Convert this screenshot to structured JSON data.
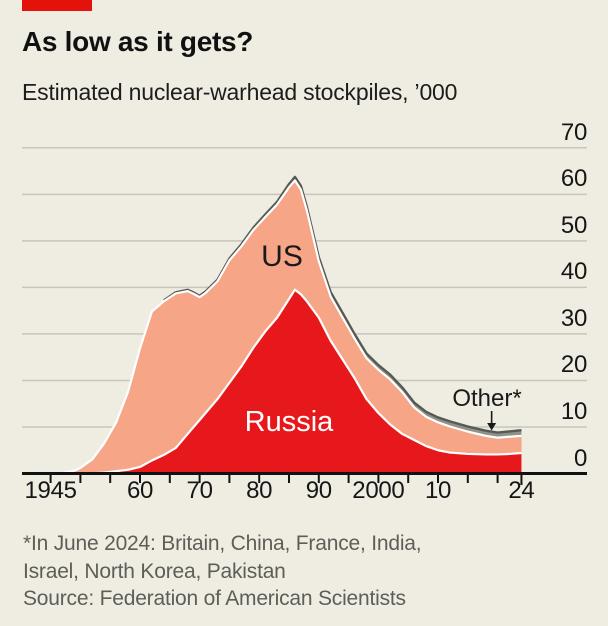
{
  "header": {
    "title": "As low as it gets?",
    "subtitle": "Estimated nuclear-warhead stockpiles, ’000"
  },
  "footer": {
    "note_line1": "*In June 2024: Britain, China, France, India,",
    "note_line2": "Israel, North Korea, Pakistan",
    "source": "Source: Federation of American Scientists"
  },
  "colors": {
    "background": "#efece2",
    "brand_red": "#e3120b",
    "russia_red": "#e6181b",
    "us_salmon": "#f7a587",
    "other_gray": "#8f928a",
    "other_outline": "#555a55",
    "white_separator": "#ffffff",
    "gridline": "#c8c6bc",
    "axis": "#121212",
    "text_dark": "#161616",
    "text_muted": "#5e5e59"
  },
  "chart_data": {
    "type": "area",
    "stacked": true,
    "title": "As low as it gets?",
    "subtitle": "Estimated nuclear-warhead stockpiles, ’000",
    "units": "thousands of warheads",
    "xlim": [
      1945,
      2024
    ],
    "ylim": [
      0,
      70
    ],
    "grid": "horizontal",
    "yticks": [
      0,
      10,
      20,
      30,
      40,
      50,
      60,
      70
    ],
    "y_axis_side": "right",
    "xticks": [
      {
        "year": 1945,
        "label": "1945"
      },
      {
        "year": 1960,
        "label": "60"
      },
      {
        "year": 1970,
        "label": "70"
      },
      {
        "year": 1980,
        "label": "80"
      },
      {
        "year": 1990,
        "label": "90"
      },
      {
        "year": 2000,
        "label": "2000"
      },
      {
        "year": 2010,
        "label": "10"
      },
      {
        "year": 2024,
        "label": "24"
      }
    ],
    "minor_tick_step": 5,
    "years": [
      1945,
      1947,
      1949,
      1950,
      1952,
      1954,
      1956,
      1958,
      1960,
      1962,
      1964,
      1966,
      1968,
      1969,
      1970,
      1971,
      1973,
      1975,
      1977,
      1979,
      1981,
      1983,
      1985,
      1986,
      1987,
      1988,
      1990,
      1992,
      1994,
      1996,
      1998,
      2000,
      2002,
      2004,
      2006,
      2008,
      2010,
      2012,
      2015,
      2018,
      2020,
      2022,
      2024
    ],
    "series": [
      {
        "name": "Russia",
        "color": "#e6181b",
        "values": [
          0,
          0,
          0,
          0,
          0.05,
          0.2,
          0.5,
          0.8,
          1.4,
          2.8,
          4,
          5.5,
          8.5,
          10,
          11.5,
          13,
          16,
          19.5,
          23,
          27,
          30.5,
          33.5,
          37.5,
          39.5,
          38.5,
          37,
          33.5,
          28.5,
          24.5,
          20.5,
          16,
          13,
          10.5,
          8.5,
          7.2,
          5.9,
          5,
          4.5,
          4.2,
          4.1,
          4.1,
          4.2,
          4.4
        ]
      },
      {
        "name": "US",
        "color": "#f7a587",
        "values": [
          0.02,
          0.1,
          0.6,
          1.2,
          3,
          6.3,
          10.5,
          16.8,
          25.5,
          32,
          33,
          33.2,
          30.7,
          28.6,
          26.4,
          25.8,
          25.3,
          26.3,
          25.8,
          25.3,
          24.6,
          24.3,
          24,
          23.5,
          22.5,
          19.5,
          12.1,
          9.5,
          9,
          8.5,
          8.8,
          9.3,
          9.7,
          9,
          7,
          6.3,
          6,
          5.6,
          4.8,
          4,
          3.6,
          3.7,
          3.7
        ]
      },
      {
        "name": "Other*",
        "color": "#8f928a",
        "values": [
          0,
          0,
          0,
          0,
          0.02,
          0.05,
          0.08,
          0.1,
          0.12,
          0.15,
          0.2,
          0.25,
          0.28,
          0.3,
          0.3,
          0.32,
          0.35,
          0.4,
          0.45,
          0.5,
          0.55,
          0.6,
          0.7,
          0.75,
          0.8,
          0.8,
          0.9,
          0.95,
          1,
          1,
          1,
          1,
          1,
          1,
          1.05,
          1.05,
          1.05,
          1.1,
          1.1,
          1.1,
          1.1,
          1.15,
          1.2
        ]
      }
    ],
    "annotation": {
      "label": "Other*",
      "arrow_target_year": 2019
    }
  }
}
